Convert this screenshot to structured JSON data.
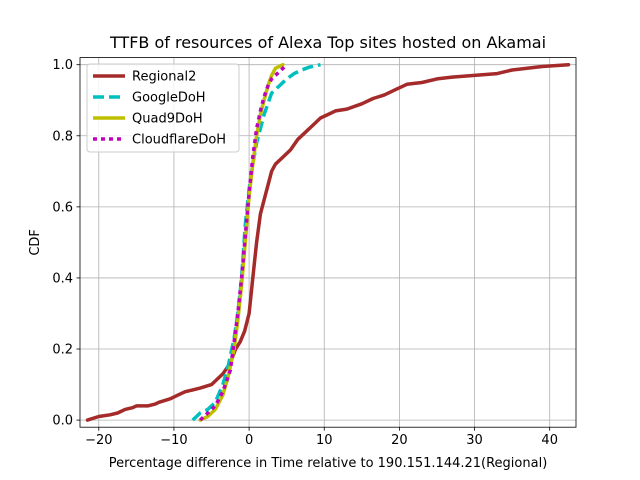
{
  "chart_data": {
    "type": "line",
    "title": "TTFB of resources of Alexa Top sites hosted on Akamai",
    "xlabel": "Percentage difference in Time relative to 190.151.144.21(Regional)",
    "ylabel": "CDF",
    "xlim": [
      -22.5,
      43.5
    ],
    "ylim": [
      -0.02,
      1.02
    ],
    "xticks": [
      -20,
      -10,
      0,
      10,
      20,
      30,
      40
    ],
    "yticks": [
      0.0,
      0.2,
      0.4,
      0.6,
      0.8,
      1.0
    ],
    "xtick_labels": [
      "−20",
      "−10",
      "0",
      "10",
      "20",
      "30",
      "40"
    ],
    "ytick_labels": [
      "0.0",
      "0.2",
      "0.4",
      "0.6",
      "0.8",
      "1.0"
    ],
    "grid": true,
    "legend_position": "top-left",
    "series": [
      {
        "name": "Regional2",
        "color": "#a52a2a",
        "style": "solid",
        "x": [
          -21.5,
          -20,
          -18.5,
          -17.5,
          -16.5,
          -15.5,
          -15,
          -13.5,
          -12.5,
          -12,
          -10.5,
          -9.5,
          -8.5,
          -7.5,
          -6.5,
          -5,
          -4.5,
          -3.5,
          -2.5,
          -1.8,
          -1.2,
          -0.6,
          0,
          0.5,
          1,
          1.5,
          2,
          2.5,
          3,
          3.5,
          4.5,
          5.5,
          6.5,
          7.5,
          8.5,
          9.5,
          10.5,
          11.5,
          13,
          15,
          16.5,
          18,
          19.5,
          21,
          23,
          25,
          27,
          30,
          33,
          35,
          37,
          39,
          42.5
        ],
        "y": [
          0.0,
          0.01,
          0.015,
          0.02,
          0.03,
          0.035,
          0.04,
          0.04,
          0.045,
          0.05,
          0.06,
          0.07,
          0.08,
          0.085,
          0.09,
          0.1,
          0.11,
          0.13,
          0.16,
          0.2,
          0.22,
          0.25,
          0.3,
          0.4,
          0.5,
          0.58,
          0.62,
          0.66,
          0.7,
          0.72,
          0.74,
          0.76,
          0.79,
          0.81,
          0.83,
          0.85,
          0.86,
          0.87,
          0.875,
          0.89,
          0.905,
          0.915,
          0.93,
          0.945,
          0.95,
          0.96,
          0.965,
          0.97,
          0.975,
          0.985,
          0.99,
          0.995,
          1.0
        ]
      },
      {
        "name": "GoogleDoH",
        "color": "#00bfbf",
        "style": "dash",
        "x": [
          -7.5,
          -6.5,
          -5.5,
          -4.5,
          -3.5,
          -2.8,
          -2,
          -1.5,
          -1,
          -0.5,
          0,
          0.5,
          1,
          1.5,
          2,
          2.5,
          3,
          4,
          5,
          6,
          7,
          8,
          9.5
        ],
        "y": [
          0.0,
          0.02,
          0.03,
          0.05,
          0.1,
          0.15,
          0.23,
          0.3,
          0.4,
          0.55,
          0.65,
          0.72,
          0.78,
          0.82,
          0.86,
          0.89,
          0.92,
          0.94,
          0.96,
          0.975,
          0.985,
          0.993,
          1.0
        ]
      },
      {
        "name": "Quad9DoH",
        "color": "#bfbf00",
        "style": "solid",
        "x": [
          -6.5,
          -5.5,
          -4.5,
          -3.5,
          -2.8,
          -2,
          -1.5,
          -1,
          -0.5,
          0,
          0.5,
          1,
          1.5,
          2,
          2.5,
          3,
          3.5,
          4.5
        ],
        "y": [
          0.0,
          0.01,
          0.03,
          0.07,
          0.12,
          0.2,
          0.28,
          0.38,
          0.5,
          0.63,
          0.72,
          0.8,
          0.86,
          0.9,
          0.94,
          0.97,
          0.99,
          1.0
        ]
      },
      {
        "name": "CloudflareDoH",
        "color": "#bf00bf",
        "style": "dot",
        "x": [
          -6.5,
          -5.5,
          -4.5,
          -3.5,
          -2.5,
          -2,
          -1.5,
          -1,
          -0.5,
          0,
          0.5,
          1,
          1.5,
          2,
          2.5,
          3,
          4,
          5
        ],
        "y": [
          0.0,
          0.02,
          0.04,
          0.08,
          0.14,
          0.22,
          0.3,
          0.4,
          0.52,
          0.64,
          0.74,
          0.82,
          0.87,
          0.91,
          0.94,
          0.96,
          0.98,
          1.0
        ]
      }
    ]
  }
}
